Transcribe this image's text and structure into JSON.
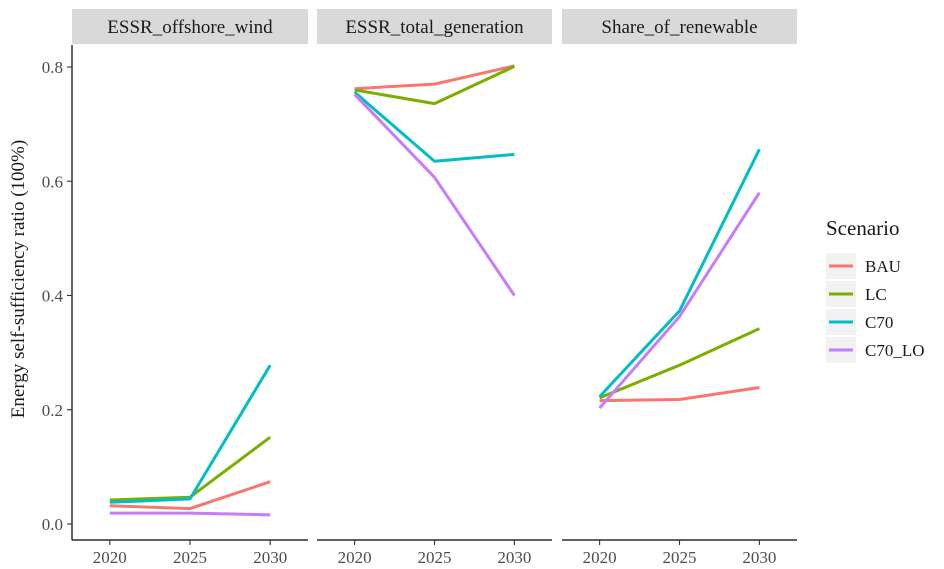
{
  "chart_data": {
    "type": "line",
    "xlabel": "",
    "ylabel": "Energy self-sufficiency ratio (100%)",
    "ylim": [
      -0.02,
      0.84
    ],
    "y_ticks": [
      "0.0",
      "0.2",
      "0.4",
      "0.6",
      "0.8"
    ],
    "y_tick_values": [
      0.0,
      0.2,
      0.4,
      0.6,
      0.8
    ],
    "x_ticks": [
      "2020",
      "2025",
      "2030"
    ],
    "x_tick_values": [
      2020,
      2025,
      2030
    ],
    "grid": false,
    "legend": {
      "title": "Scenario",
      "position": "right",
      "entries": [
        {
          "name": "BAU",
          "color": "#F8766D"
        },
        {
          "name": "LC",
          "color": "#7CAE00"
        },
        {
          "name": "C70",
          "color": "#00BFC4"
        },
        {
          "name": "C70_LO",
          "color": "#C77CFF"
        }
      ]
    },
    "panels": [
      {
        "title": "ESSR_offshore_wind",
        "series": [
          {
            "name": "BAU",
            "x": [
              2020,
              2025,
              2030
            ],
            "y": [
              0.032,
              0.027,
              0.074
            ]
          },
          {
            "name": "LC",
            "x": [
              2020,
              2025,
              2030
            ],
            "y": [
              0.042,
              0.047,
              0.152
            ]
          },
          {
            "name": "C70",
            "x": [
              2020,
              2025,
              2030
            ],
            "y": [
              0.038,
              0.044,
              0.278
            ]
          },
          {
            "name": "C70_LO",
            "x": [
              2020,
              2025,
              2030
            ],
            "y": [
              0.019,
              0.019,
              0.016
            ]
          }
        ]
      },
      {
        "title": "ESSR_total_generation",
        "series": [
          {
            "name": "BAU",
            "x": [
              2020,
              2025,
              2030
            ],
            "y": [
              0.762,
              0.77,
              0.802
            ]
          },
          {
            "name": "LC",
            "x": [
              2020,
              2025,
              2030
            ],
            "y": [
              0.76,
              0.736,
              0.801
            ]
          },
          {
            "name": "C70",
            "x": [
              2020,
              2025,
              2030
            ],
            "y": [
              0.756,
              0.635,
              0.647
            ]
          },
          {
            "name": "C70_LO",
            "x": [
              2020,
              2025,
              2030
            ],
            "y": [
              0.752,
              0.607,
              0.4
            ]
          }
        ]
      },
      {
        "title": "Share_of_renewable",
        "series": [
          {
            "name": "BAU",
            "x": [
              2020,
              2025,
              2030
            ],
            "y": [
              0.216,
              0.218,
              0.239
            ]
          },
          {
            "name": "LC",
            "x": [
              2020,
              2025,
              2030
            ],
            "y": [
              0.221,
              0.278,
              0.342
            ]
          },
          {
            "name": "C70",
            "x": [
              2020,
              2025,
              2030
            ],
            "y": [
              0.223,
              0.373,
              0.656
            ]
          },
          {
            "name": "C70_LO",
            "x": [
              2020,
              2025,
              2030
            ],
            "y": [
              0.203,
              0.363,
              0.58
            ]
          }
        ]
      }
    ]
  }
}
